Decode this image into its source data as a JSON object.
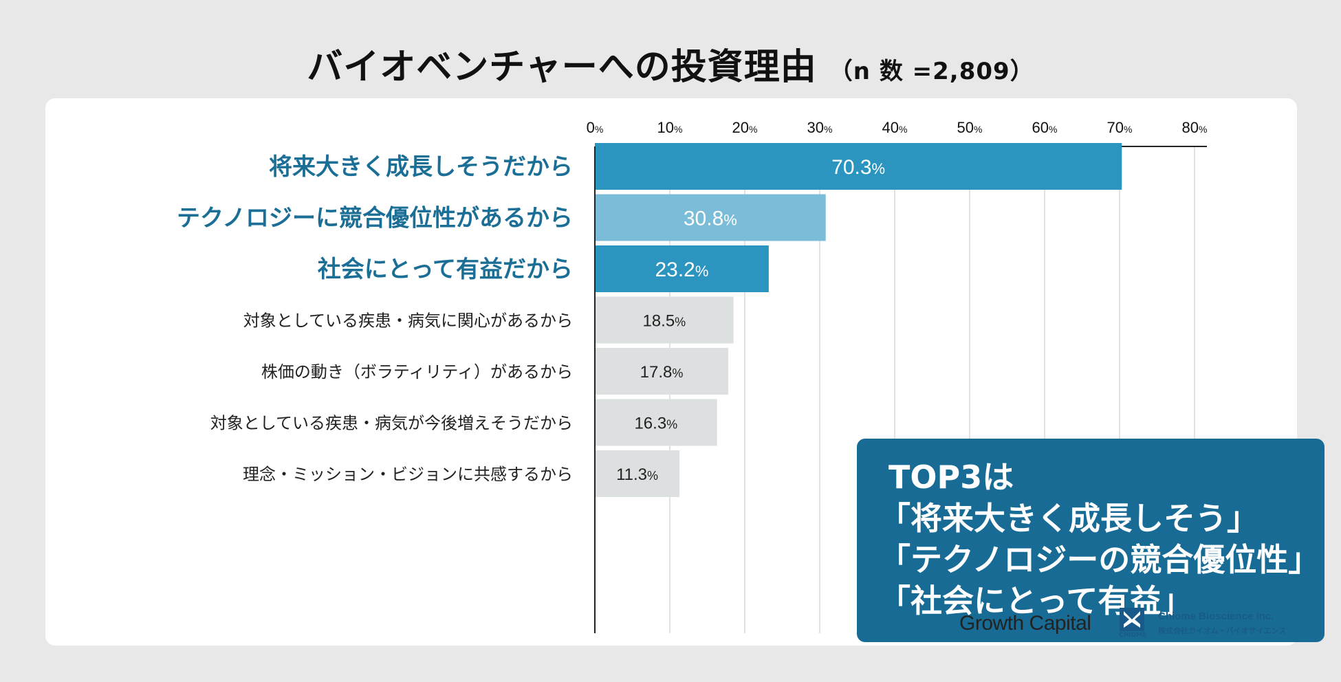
{
  "title": "バイオベンチャーへの投資理由",
  "subtitle": "（n 数 =2,809）",
  "callout": {
    "line1": "TOP3は",
    "line2": "「将来大きく成長しそう」",
    "line3": "「テクノロジーの競合優位性」",
    "line4": "「社会にとって有益」"
  },
  "branding": {
    "growth_capital": "Growth Capital",
    "chiome_logo": "CHIOME",
    "chiome_name": "Chiome Bioscience Inc.",
    "chiome_jp": "株式会社カイオム・バイオサイエンス"
  },
  "colors": {
    "top1": "#2b95bf",
    "top2": "#7bbdd8",
    "top3": "#2b95bf",
    "other": "#dde0e0",
    "label_top": "#1b6e96",
    "label_other": "#222222",
    "callout_bg": "#176b95"
  },
  "chart_data": {
    "type": "bar",
    "orientation": "horizontal",
    "title": "バイオベンチャーへの投資理由",
    "xlim": [
      0,
      80
    ],
    "ticks": [
      0,
      10,
      20,
      30,
      40,
      50,
      60,
      70,
      80
    ],
    "tick_unit": "%",
    "categories": [
      "将来大きく成長しそうだから",
      "テクノロジーに競合優位性があるから",
      "社会にとって有益だから",
      "対象としている疾患・病気に関心があるから",
      "株価の動き（ボラティリティ）があるから",
      "対象としている疾患・病気が今後増えそうだから",
      "理念・ミッション・ビジョンに共感するから"
    ],
    "values": [
      70.3,
      30.8,
      23.2,
      18.5,
      17.8,
      16.3,
      11.3
    ],
    "value_unit": "%",
    "highlight": [
      true,
      true,
      true,
      false,
      false,
      false,
      false
    ]
  }
}
